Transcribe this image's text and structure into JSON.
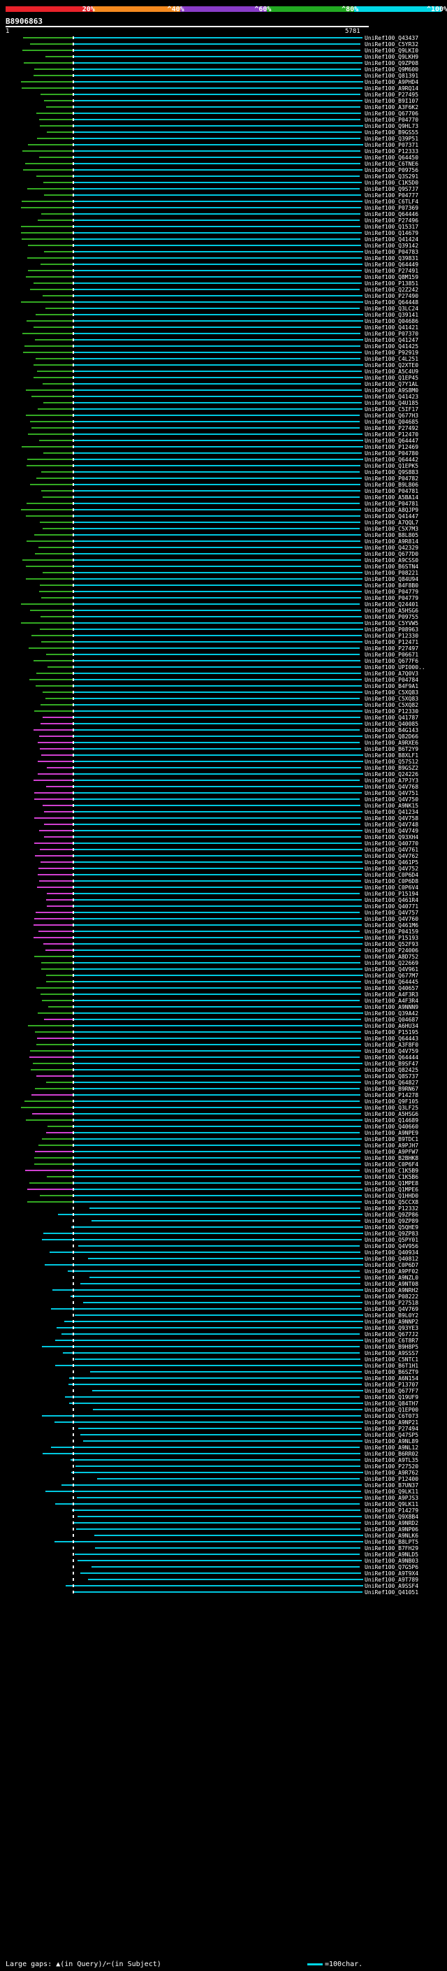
{
  "legend": {
    "labels": [
      "20%",
      "^40%",
      "^60%",
      "^80%",
      "^100%"
    ],
    "colors": [
      "#e8222a",
      "#f58a1f",
      "#8a3cc8",
      "#22aa22",
      "#00d7e6"
    ]
  },
  "query": {
    "id": "B8906863",
    "start": "1",
    "end": "5781"
  },
  "hit_colors": {
    "cyan": "#00c8e0",
    "green": "#33aa22",
    "magenta": "#d040d0",
    "white": "#ffffff"
  },
  "hits": [
    "UniRef100_Q43437",
    "UniRef100_C5YR32",
    "UniRef100_Q9LKI0",
    "UniRef100_Q9LKH9",
    "UniRef100_Q9ZP08",
    "UniRef100_Q9M600",
    "UniRef100_Q81391",
    "UniRef100_A9PHD4",
    "UniRef100_A9RQ14",
    "UniRef100_P27495",
    "UniRef100_B9I107",
    "UniRef100_A3F6K2",
    "UniRef100_Q67706",
    "UniRef100_P04770",
    "UniRef100_Q9HL73",
    "UniRef100_B9GS55",
    "UniRef100_Q39P51",
    "UniRef100_P07371",
    "UniRef100_P12333",
    "UniRef100_Q64450",
    "UniRef100_C6TNE6",
    "UniRef100_P09756",
    "UniRef100_Q3S291",
    "UniRef100_C1K5D0",
    "UniRef100_Q9S7J7",
    "UniRef100_P04777",
    "UniRef100_C6TLF4",
    "UniRef100_P07369",
    "UniRef100_Q64446",
    "UniRef100_P27496",
    "UniRef100_Q15317",
    "UniRef100_Q14679",
    "UniRef100_Q41424",
    "UniRef100_Q39142",
    "UniRef100_P04783",
    "UniRef100_Q39831",
    "UniRef100_Q64449",
    "UniRef100_P27491",
    "UniRef100_Q8M159",
    "UniRef100_P13851",
    "UniRef100_Q2Z242",
    "UniRef100_P27490",
    "UniRef100_Q64448",
    "UniRef100_Q3LC24",
    "UniRef100_Q39141",
    "UniRef100_Q04686",
    "UniRef100_Q41421",
    "UniRef100_P07370",
    "UniRef100_Q41247",
    "UniRef100_Q41425",
    "UniRef100_P92919",
    "UniRef100_C4L251",
    "UniRef100_Q2XTE0",
    "UniRef100_A5C4U9",
    "UniRef100_Q1EP45",
    "UniRef100_Q7Y1AL",
    "UniRef100_A9S8M0",
    "UniRef100_Q41423",
    "UniRef100_Q4U185",
    "UniRef100_C5IF17",
    "UniRef100_Q677H3",
    "UniRef100_Q04685",
    "UniRef100_P27492",
    "UniRef100_P12470",
    "UniRef100_Q64447",
    "UniRef100_P12469",
    "UniRef100_P04780",
    "UniRef100_Q64442",
    "UniRef100_Q1EPK5",
    "UniRef100_Q9S883",
    "UniRef100_P04782",
    "UniRef100_B9L806",
    "UniRef100_P04781",
    "UniRef100_A5BA14",
    "UniRef100_P04781",
    "UniRef100_A8QJP9",
    "UniRef100_Q41447",
    "UniRef100_A7QQL7",
    "UniRef100_C5X7M3",
    "UniRef100_B8L805",
    "UniRef100_A9R814",
    "UniRef100_Q42329",
    "UniRef100_Q677D0",
    "UniRef100_A9CSS0",
    "UniRef100_B6STN4",
    "UniRef100_P08221",
    "UniRef100_Q84U94",
    "UniRef100_B4F8B0",
    "UniRef100_P04779",
    "UniRef100_P04779",
    "UniRef100_Q24401",
    "UniRef100_A5HSG6",
    "UniRef100_P09755",
    "UniRef100_C5YVW5",
    "UniRef100_P08963",
    "UniRef100_P12330",
    "UniRef100_P12471",
    "UniRef100_P27497",
    "UniRef100_P06671",
    "UniRef100_Q677F6",
    "UniRef100_UPI000..",
    "UniRef100_A7Q0V3",
    "UniRef100_P04784",
    "UniRef100_B4F9A1",
    "UniRef100_C5XQ83",
    "UniRef100_C5XQ83",
    "UniRef100_C5XQ82",
    "UniRef100_P12330",
    "UniRef100_Q41787",
    "UniRef100_Q40085",
    "UniRef100_B4G143",
    "UniRef100_Q82D66",
    "UniRef100_A9RXE6",
    "UniRef100_B6T2Y9",
    "UniRef100_B8XLF1",
    "UniRef100_Q57S12",
    "UniRef100_B9GSZ2",
    "UniRef100_Q24226",
    "UniRef100_A7PJY3",
    "UniRef100_Q4V768",
    "UniRef100_Q4V751",
    "UniRef100_Q4V750",
    "UniRef100_A9NK15",
    "UniRef100_Q41234",
    "UniRef100_Q4V758",
    "UniRef100_Q4V748",
    "UniRef100_Q4V749",
    "UniRef100_Q93XH4",
    "UniRef100_Q40770",
    "UniRef100_Q4V761",
    "UniRef100_Q4V762",
    "UniRef100_Q461P5",
    "UniRef100_Q4V752",
    "UniRef100_C0P6D4",
    "UniRef100_C0P6D8",
    "UniRef100_C0P6V4",
    "UniRef100_P15194",
    "UniRef100_Q461R4",
    "UniRef100_Q40771",
    "UniRef100_Q4V757",
    "UniRef100_Q4V760",
    "UniRef100_Q461M6",
    "UniRef100_P04159",
    "UniRef100_P15193",
    "UniRef100_Q52F93",
    "UniRef100_P24006",
    "UniRef100_A8D752",
    "UniRef100_Q22669",
    "UniRef100_Q4V961",
    "UniRef100_Q677M7",
    "UniRef100_Q64445",
    "UniRef100_Q40657",
    "UniRef100_A4F3R3",
    "UniRef100_A4F3R4",
    "UniRef100_A9NNN9",
    "UniRef100_Q39A42",
    "UniRef100_Q04687",
    "UniRef100_A6HU34",
    "UniRef100_P15195",
    "UniRef100_Q64443",
    "UniRef100_A3F8F0",
    "UniRef100_Q4V759",
    "UniRef100_Q64444",
    "UniRef100_B9SF47",
    "UniRef100_Q82425",
    "UniRef100_Q8S737",
    "UniRef100_Q64827",
    "UniRef100_B9RN67",
    "UniRef100_P14278",
    "UniRef100_Q9F105",
    "UniRef100_Q3LF25",
    "UniRef100_A5HSG6",
    "UniRef100_Q14689",
    "UniRef100_Q40660",
    "UniRef100_A9NPE9",
    "UniRef100_B9TDC1",
    "UniRef100_A9PJH7",
    "UniRef100_A9PFW7",
    "UniRef100_B2BHK8",
    "UniRef100_C0P6F4",
    "UniRef100_C1K5B9",
    "UniRef100_C1K5B6",
    "UniRef100_Q1MPE8",
    "UniRef100_Q1MPE6",
    "UniRef100_Q1HHD0",
    "UniRef100_Q5CCX8",
    "UniRef100_P12332",
    "UniRef100_Q9ZP86",
    "UniRef100_Q9ZP89",
    "UniRef100_Q5QHE9",
    "UniRef100_Q9ZP83",
    "UniRef100_Q5PY01",
    "UniRef100_Q4V956",
    "UniRef100_Q40934",
    "UniRef100_Q40812",
    "UniRef100_C0P6D7",
    "UniRef100_A9PF02",
    "UniRef100_A9NZL0",
    "UniRef100_A9NT08",
    "UniRef100_A9NRH2",
    "UniRef100_P08222",
    "UniRef100_P27518",
    "UniRef100_Q4V769",
    "UniRef100_B9L0Y2",
    "UniRef100_A9NNP2",
    "UniRef100_Q93YE3",
    "UniRef100_Q677J2",
    "UniRef100_C6T8R7",
    "UniRef100_B9H8P5",
    "UniRef100_A9SSS7",
    "UniRef100_C5NTC1",
    "UniRef100_B6T1H1",
    "UniRef100_B6SZT9",
    "UniRef100_A6N154",
    "UniRef100_P13707",
    "UniRef100_Q677F7",
    "UniRef100_Q19UF9",
    "UniRef100_Q84TH7",
    "UniRef100_Q1EP00",
    "UniRef100_C6T073",
    "UniRef100_A9NP21",
    "UniRef100_P27494",
    "UniRef100_Q47SP5",
    "UniRef100_A9NL89",
    "UniRef100_A9NL12",
    "UniRef100_B6RR02",
    "UniRef100_A9TL35",
    "UniRef100_P27520",
    "UniRef100_A9R762",
    "UniRef100_P12400",
    "UniRef100_B7UN37",
    "UniRef100_Q9LK11",
    "UniRef100_A9PJS3",
    "UniRef100_Q9LK11",
    "UniRef100_P14279",
    "UniRef100_Q9X8B4",
    "UniRef100_A9NRD2",
    "UniRef100_A9NP06",
    "UniRef100_A9NLK6",
    "UniRef100_B8LPT5",
    "UniRef100_B7FH29",
    "UniRef100_A9NLD5",
    "UniRef100_A9NB03",
    "UniRef100_Q7G5P6",
    "UniRef100_A9T9X4",
    "UniRef100_A9T789",
    "UniRef100_A9SSF4",
    "UniRef100_Q41051"
  ],
  "footer": {
    "gaps_label": "Large gaps: ▲(in Query)/⌐(in Subject)",
    "scale_label": "=100char."
  }
}
